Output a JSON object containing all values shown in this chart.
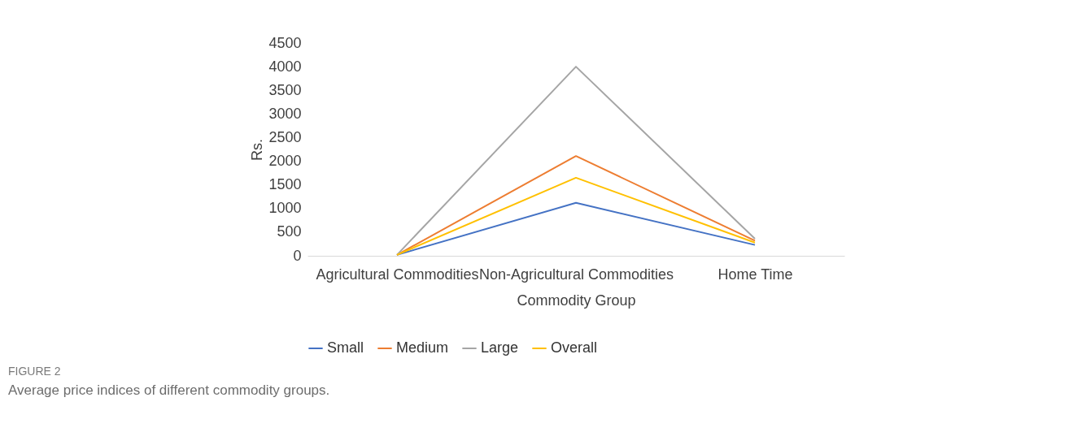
{
  "chart_data": {
    "type": "line",
    "xlabel": "Commodity Group",
    "ylabel": "Rs.",
    "categories": [
      "Agricultural Commodities",
      "Non-Agricultural Commodities",
      "Home Time"
    ],
    "series": [
      {
        "name": "Small",
        "color": "#4472c4",
        "values": [
          20,
          1120,
          230
        ]
      },
      {
        "name": "Medium",
        "color": "#ed7d31",
        "values": [
          20,
          2110,
          320
        ]
      },
      {
        "name": "Large",
        "color": "#a5a5a5",
        "values": [
          20,
          4000,
          360
        ]
      },
      {
        "name": "Overall",
        "color": "#ffc000",
        "values": [
          20,
          1650,
          280
        ]
      }
    ],
    "ylim": [
      0,
      4500
    ],
    "yticks": [
      0,
      500,
      1000,
      1500,
      2000,
      2500,
      3000,
      3500,
      4000,
      4500
    ],
    "grid": false,
    "legend": "bottom",
    "marker": "none",
    "line_style": "solid",
    "annotations": [
      "FIGURE 2",
      "Average price indices of different commodity groups."
    ]
  }
}
